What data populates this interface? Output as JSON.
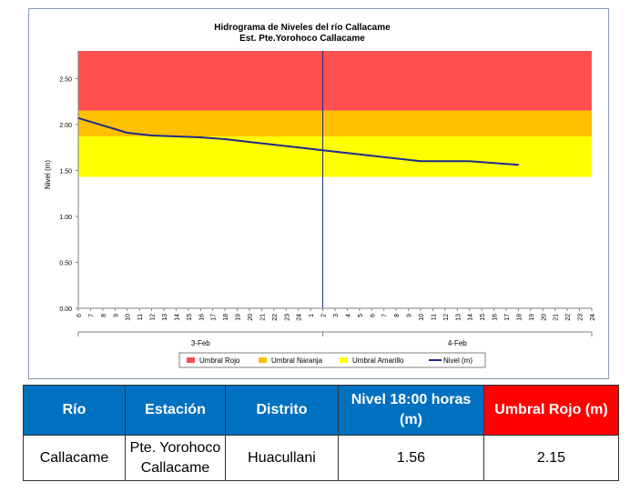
{
  "chart_data": {
    "type": "line",
    "title": "Hidrograma de Niveles del río Callacame",
    "subtitle": "Est. Pte.Yorohoco Callacame",
    "ylabel": "Nivel (m)",
    "xlabel": "",
    "ylim": [
      0,
      2.8
    ],
    "yticks": [
      "0.00",
      "0.50",
      "1.00",
      "1.50",
      "2.00",
      "2.50"
    ],
    "hour_ticks": [
      "6",
      "7",
      "8",
      "9",
      "10",
      "11",
      "12",
      "13",
      "14",
      "15",
      "16",
      "17",
      "18",
      "19",
      "20",
      "21",
      "22",
      "23",
      "24",
      "1",
      "2",
      "3",
      "4",
      "5",
      "6",
      "7",
      "8",
      "9",
      "10",
      "11",
      "12",
      "13",
      "14",
      "15",
      "16",
      "17",
      "18",
      "19",
      "20",
      "21",
      "22",
      "23",
      "24"
    ],
    "days": [
      "3-Feb",
      "4-Feb"
    ],
    "thresholds": [
      {
        "name": "Umbral Rojo",
        "from": 2.15,
        "to": 2.8,
        "color": "#ff5050"
      },
      {
        "name": "Umbral Naranja",
        "from": 1.87,
        "to": 2.15,
        "color": "#ffc000"
      },
      {
        "name": "Umbral Amarillo",
        "from": 1.43,
        "to": 1.87,
        "color": "#ffff00"
      }
    ],
    "series": [
      {
        "name": "Nivel (m)",
        "color": "#1f2a8a",
        "x": [
          0,
          2,
          4,
          6,
          8,
          10,
          12,
          14,
          16,
          18,
          20,
          22,
          24,
          26,
          28,
          30,
          32,
          34,
          36
        ],
        "values": [
          2.07,
          1.99,
          1.91,
          1.88,
          1.87,
          1.86,
          1.84,
          1.81,
          1.78,
          1.75,
          1.72,
          1.69,
          1.66,
          1.63,
          1.6,
          1.6,
          1.6,
          1.58,
          1.56
        ]
      }
    ],
    "legend": [
      "Umbral Rojo",
      "Umbral Naranja",
      "Umbral Amarillo",
      "Nivel (m)"
    ],
    "legend_position": "bottom"
  },
  "table": {
    "headers": [
      "Río",
      "Estación",
      "Distrito",
      "Nivel 18:00 horas (m)",
      "Umbral Rojo (m)"
    ],
    "row": [
      "Callacame",
      "Pte. Yorohoco Callacame",
      "Huacullani",
      "1.56",
      "2.15"
    ]
  }
}
